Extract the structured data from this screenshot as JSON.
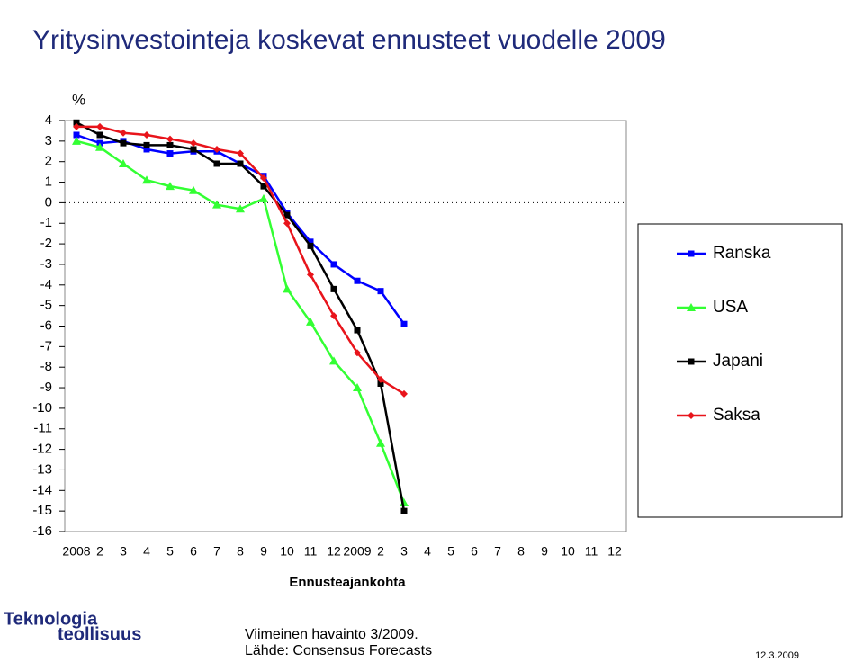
{
  "chart_data": {
    "type": "line",
    "title": "Yritysinvestointeja koskevat ennusteet vuodelle 2009",
    "y_label": "%",
    "x_label": "Ennusteajankohta",
    "categories": [
      "2008",
      "2",
      "3",
      "4",
      "5",
      "6",
      "7",
      "8",
      "9",
      "10",
      "11",
      "12",
      "2009",
      "2",
      "3",
      "4",
      "5",
      "6",
      "7",
      "8",
      "9",
      "10",
      "11",
      "12"
    ],
    "ylim": [
      -16,
      4
    ],
    "yticks": [
      4,
      3,
      2,
      1,
      0,
      -1,
      -2,
      -3,
      -4,
      -5,
      -6,
      -7,
      -8,
      -9,
      -10,
      -11,
      -12,
      -13,
      -14,
      -15,
      -16
    ],
    "zero_line": true,
    "legend": "right",
    "series": [
      {
        "name": "Ranska",
        "color": "#0000ff",
        "marker": "square",
        "values": [
          3.3,
          2.9,
          3.0,
          2.6,
          2.4,
          2.5,
          2.5,
          1.9,
          1.3,
          -0.5,
          -1.9,
          -3.0,
          -3.8,
          -4.3,
          -5.9,
          null,
          null,
          null,
          null,
          null,
          null,
          null,
          null,
          null
        ]
      },
      {
        "name": "USA",
        "color": "#33ff33",
        "marker": "triangle",
        "values": [
          3.0,
          2.7,
          1.9,
          1.1,
          0.8,
          0.6,
          -0.1,
          -0.3,
          0.2,
          -4.2,
          -5.8,
          -7.7,
          -9.0,
          -11.7,
          -14.6,
          null,
          null,
          null,
          null,
          null,
          null,
          null,
          null,
          null
        ]
      },
      {
        "name": "Japani",
        "color": "#000000",
        "marker": "square",
        "values": [
          3.9,
          3.3,
          2.9,
          2.8,
          2.8,
          2.6,
          1.9,
          1.9,
          0.8,
          -0.6,
          -2.1,
          -4.2,
          -6.2,
          -8.8,
          -15.0,
          null,
          null,
          null,
          null,
          null,
          null,
          null,
          null,
          null
        ]
      },
      {
        "name": "Saksa",
        "color": "#e8141b",
        "marker": "diamond",
        "values": [
          3.7,
          3.7,
          3.4,
          3.3,
          3.1,
          2.9,
          2.6,
          2.4,
          1.2,
          -1.0,
          -3.5,
          -5.5,
          -7.3,
          -8.6,
          -9.3,
          null,
          null,
          null,
          null,
          null,
          null,
          null,
          null,
          null
        ]
      }
    ]
  },
  "footer": {
    "logo_line1": "Teknologia",
    "logo_line2": "teollisuus",
    "note": "Viimeinen havainto 3/2009.",
    "source": "Lähde: Consensus Forecasts",
    "date": "12.3.2009"
  }
}
